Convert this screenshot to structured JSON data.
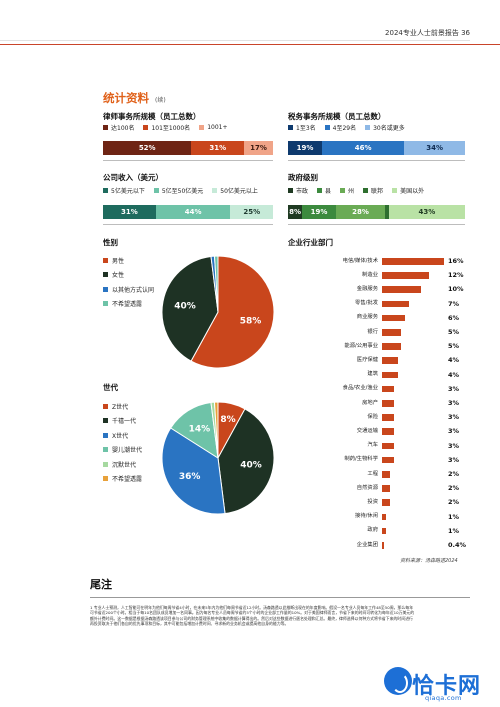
{
  "header": {
    "text": "2024专业人士前景报告  36"
  },
  "section": {
    "title": "统计资料",
    "subtitle": "(续)"
  },
  "law_firm": {
    "title": "律师事务所规模（员工总数）",
    "legend": [
      "达100名",
      "101至1000名",
      "1001+"
    ],
    "colors": [
      "#6e2414",
      "#c9461c",
      "#f0a488"
    ],
    "values": [
      "52%",
      "31%",
      "17%"
    ],
    "fractions": [
      52,
      31,
      17
    ]
  },
  "tax_firm": {
    "title": "税务事务所规模（员工总数）",
    "legend": [
      "1至3名",
      "4至29名",
      "30名或更多"
    ],
    "colors": [
      "#0e3a6e",
      "#2a74c2",
      "#8fb9e6"
    ],
    "values": [
      "19%",
      "46%",
      "34%"
    ],
    "fractions": [
      19,
      46,
      34
    ]
  },
  "revenue": {
    "title": "公司收入（美元）",
    "legend": [
      "5亿美元以下",
      "5亿至50亿美元",
      "50亿美元以上"
    ],
    "colors": [
      "#1e6b5e",
      "#6ec3a8",
      "#c6ead8"
    ],
    "values": [
      "31%",
      "44%",
      "25%"
    ],
    "fractions": [
      31,
      44,
      25
    ]
  },
  "gov": {
    "title": "政府级别",
    "legend": [
      "市政",
      "县",
      "州",
      "联邦",
      "美国以外"
    ],
    "colors": [
      "#1f3a22",
      "#3c8a3e",
      "#6aab55",
      "#2e6f2f",
      "#b9e2a5"
    ],
    "values": [
      "8%",
      "19%",
      "28%",
      "",
      "43%"
    ],
    "fractions": [
      8,
      19,
      28,
      2,
      43
    ]
  },
  "gender": {
    "title": "性别",
    "legend": [
      "男性",
      "女性",
      "以其他方式认同",
      "不希望透露"
    ],
    "colors": [
      "#c9461c",
      "#1e3224",
      "#2a74c2",
      "#6ec3a8"
    ],
    "values": [
      "58%",
      "40%",
      "",
      ""
    ],
    "fractions": [
      58,
      40,
      1,
      1
    ]
  },
  "generation": {
    "title": "世代",
    "legend": [
      "Z世代",
      "千禧一代",
      "X世代",
      "婴儿潮世代",
      "沉默世代",
      "不希望透露"
    ],
    "colors": [
      "#c9461c",
      "#1e3224",
      "#2a74c2",
      "#6ec3a8",
      "#a6d9a0",
      "#e8a13a"
    ],
    "values": [
      "8%",
      "40%",
      "36%",
      "14%",
      "",
      ""
    ],
    "fractions": [
      8,
      40,
      36,
      14,
      1,
      1
    ]
  },
  "industry": {
    "title": "企业行业部门",
    "color": "#c9461c",
    "labels": [
      "电信/媒体/技术",
      "制造业",
      "金融服务",
      "零售/批发",
      "商业服务",
      "银行",
      "能源/公用事业",
      "医疗保健",
      "建筑",
      "食品/农业/渔业",
      "房地产",
      "保险",
      "交通运输",
      "汽车",
      "制药/生物科学",
      "工程",
      "自然资源",
      "投资",
      "接待/休闲",
      "政府",
      "企业集团"
    ],
    "values": [
      "16%",
      "12%",
      "10%",
      "7%",
      "6%",
      "5%",
      "5%",
      "4%",
      "4%",
      "3%",
      "3%",
      "3%",
      "3%",
      "3%",
      "3%",
      "2%",
      "2%",
      "2%",
      "1%",
      "1%",
      "0.4%"
    ],
    "numbers": [
      16,
      12,
      10,
      7,
      6,
      5,
      5,
      4,
      4,
      3,
      3,
      3,
      3,
      3,
      3,
      2,
      2,
      2,
      1,
      1,
      0.4
    ]
  },
  "source": "资料来源：汤森路透2024",
  "footnotes": {
    "title": "尾注",
    "text": "1 专业人士预测，人工智能可在明年为他们每周节省4小时，在未来5年内为他们每周节省近12小时。汤森路透以此推断出现在的年度影响。假设一名专业人员每年工作48至50周，那么每年可节省近200个小时。相当于每10名团队成员增加一名同事。因为每名专业人员每周节省约5个小时的企业部工作量的10%。对于美国律师而言，节省下来的时间可转化为每年近10万美元的额外计费时间。这一数据是根据汤森路透该项目参与公司的财务管理系统中收集的数据计算得出的。然后对这些数据进行匿名处理和汇总。最终，律师选择以何种方式将节省下来的时间进行再投资取决于他们各自的优先事项和目标，其中可能包括增加计费时间、寻求新的业务机会或提高他自身的能力等。"
  }
}
